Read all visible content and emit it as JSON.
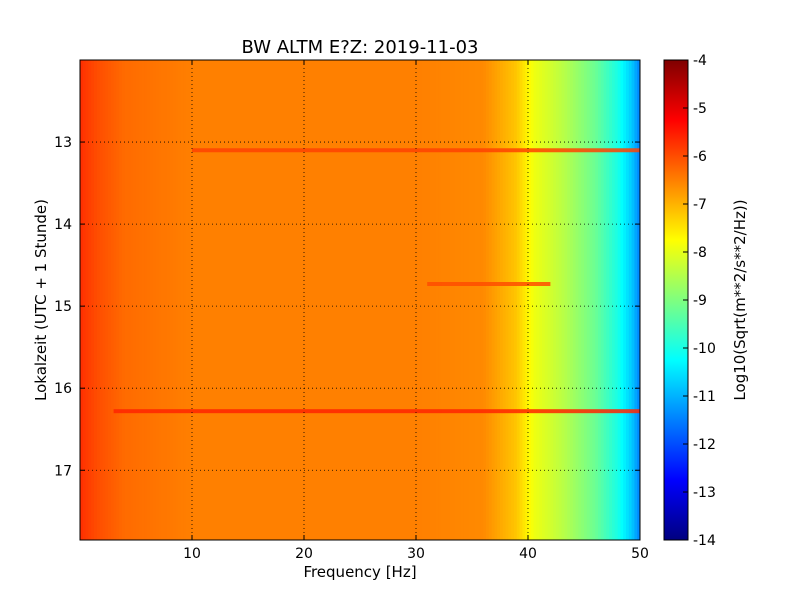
{
  "chart_data": {
    "type": "heatmap",
    "title": "BW ALTM E?Z: 2019-11-03",
    "xlabel": "Frequency [Hz]",
    "ylabel": "Lokalzeit (UTC + 1 Stunde)",
    "xlim": [
      0,
      50
    ],
    "ylim": [
      17.85,
      12.0
    ],
    "x_ticks": [
      "10",
      "20",
      "30",
      "40",
      "50"
    ],
    "y_ticks": [
      "13",
      "14",
      "15",
      "16",
      "17"
    ],
    "grid": true,
    "colorbar": {
      "label": "Log10(Sqrt(m**2/s**2/Hz))",
      "range": [
        -14,
        -4
      ],
      "ticks": [
        "-4",
        "-5",
        "-6",
        "-7",
        "-8",
        "-9",
        "-10",
        "-11",
        "-12",
        "-13",
        "-14"
      ],
      "colormap": "jet"
    },
    "spectrum_profile": [
      {
        "freq": 0,
        "value": -5.7
      },
      {
        "freq": 1.5,
        "value": -6.0
      },
      {
        "freq": 4,
        "value": -6.3
      },
      {
        "freq": 10,
        "value": -6.5
      },
      {
        "freq": 30,
        "value": -6.5
      },
      {
        "freq": 36,
        "value": -6.6
      },
      {
        "freq": 39,
        "value": -7.2
      },
      {
        "freq": 40.5,
        "value": -7.9
      },
      {
        "freq": 43,
        "value": -8.4
      },
      {
        "freq": 46,
        "value": -9.2
      },
      {
        "freq": 48,
        "value": -10.0
      },
      {
        "freq": 49.3,
        "value": -10.8
      },
      {
        "freq": 50,
        "value": -11.5
      }
    ],
    "features": [
      {
        "time": 13.1,
        "freq_from": 10,
        "freq_to": 50,
        "value": -5.9
      },
      {
        "time": 14.73,
        "freq_from": 31,
        "freq_to": 42,
        "value": -6.0
      },
      {
        "time": 16.28,
        "freq_from": 3,
        "freq_to": 50,
        "value": -5.6
      }
    ]
  }
}
